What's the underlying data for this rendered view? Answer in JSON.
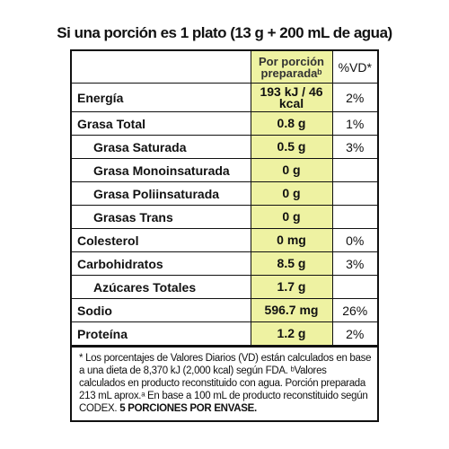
{
  "header": {
    "title": "Si una porción es 1 plato (13 g + 200 mL de agua)"
  },
  "table": {
    "columns": [
      "Por porción preparadaᵇ",
      "%VD*"
    ],
    "rows": [
      [
        "Energía",
        "193 kJ / 46 kcal",
        "2%"
      ],
      [
        "Grasa Total",
        "0.8 g",
        "1%"
      ],
      [
        "Grasa Saturada",
        "0.5 g",
        "3%"
      ],
      [
        "Grasa Monoinsaturada",
        "0 g"
      ],
      [
        "Grasa Poliinsaturada",
        "0 g"
      ],
      [
        "Grasas Trans",
        "0 g"
      ],
      [
        "Colesterol",
        "0 mg",
        "0%"
      ],
      [
        "Carbohidratos",
        "8.5 g",
        "3%"
      ],
      [
        "Azúcares Totales",
        "1.7 g"
      ],
      [
        "Sodio",
        "596.7 mg",
        "26%"
      ],
      [
        "Proteína",
        "1.2 g",
        "2%"
      ]
    ]
  },
  "footnote": {
    "text": "* Los porcentajes de Valores Diarios (VD) están calculados en base a una dieta de 8,370 kJ (2,000 kcal) según FDA. ᵇValores calculados en producto reconstituido con agua. Porción preparada 213 mL aprox.ᵃ En base a 100 mL de producto reconstituido según CODEX.",
    "bold": "5 PORCIONES POR ENVASE."
  }
}
